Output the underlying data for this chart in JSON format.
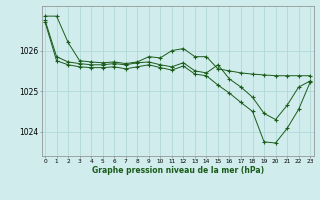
{
  "title": "Graphe pression niveau de la mer (hPa)",
  "background_color": "#d0ecec",
  "grid_color": "#aad4d4",
  "line_color": "#1a5c1a",
  "x_ticks": [
    0,
    1,
    2,
    3,
    4,
    5,
    6,
    7,
    8,
    9,
    10,
    11,
    12,
    13,
    14,
    15,
    16,
    17,
    18,
    19,
    20,
    21,
    22,
    23
  ],
  "ylim": [
    1023.4,
    1027.1
  ],
  "yticks": [
    1024,
    1025,
    1026
  ],
  "series": [
    [
      1026.85,
      1026.85,
      1026.2,
      1025.75,
      1025.72,
      1025.7,
      1025.72,
      1025.68,
      1025.72,
      1025.85,
      1025.82,
      1026.0,
      1026.05,
      1025.85,
      1025.85,
      1025.55,
      1025.5,
      1025.45,
      1025.42,
      1025.4,
      1025.38,
      1025.38,
      1025.38,
      1025.38
    ],
    [
      1026.75,
      1025.85,
      1025.72,
      1025.68,
      1025.65,
      1025.65,
      1025.68,
      1025.65,
      1025.7,
      1025.72,
      1025.65,
      1025.6,
      1025.7,
      1025.5,
      1025.45,
      1025.65,
      1025.3,
      1025.1,
      1024.85,
      1024.45,
      1024.3,
      1024.65,
      1025.1,
      1025.25
    ],
    [
      1026.7,
      1025.75,
      1025.65,
      1025.6,
      1025.58,
      1025.58,
      1025.6,
      1025.55,
      1025.6,
      1025.65,
      1025.58,
      1025.52,
      1025.62,
      1025.42,
      1025.38,
      1025.15,
      1024.95,
      1024.72,
      1024.5,
      1023.75,
      1023.72,
      1024.08,
      1024.55,
      1025.22
    ]
  ]
}
